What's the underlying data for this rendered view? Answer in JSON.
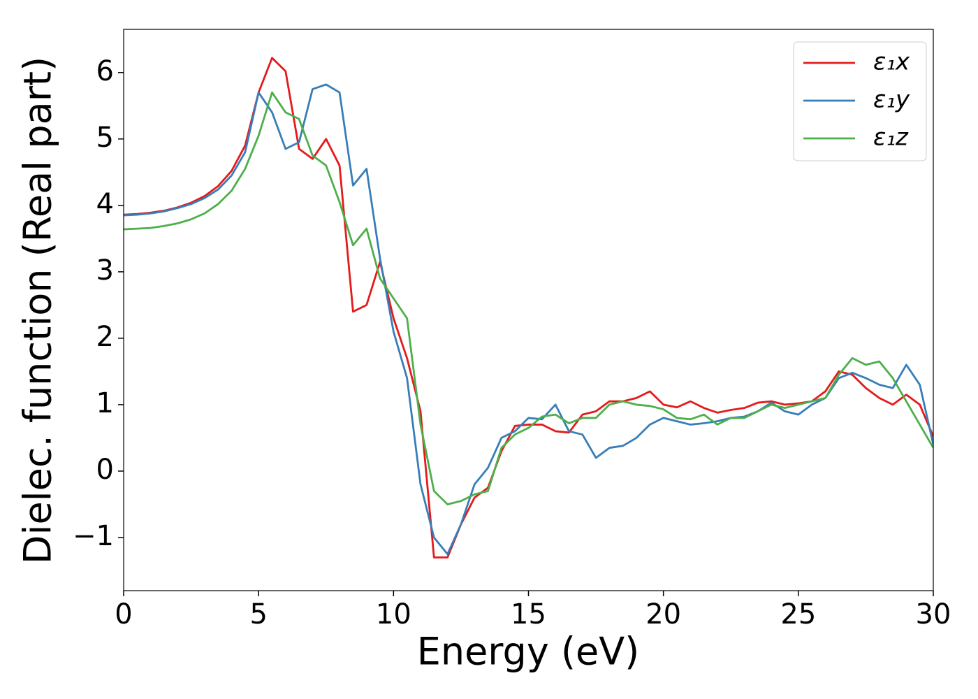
{
  "chart_data": {
    "type": "line",
    "x_label": "Energy (eV)",
    "y_label": "Dielec. function (Real part)",
    "xlim": [
      0,
      30
    ],
    "ylim": [
      -1.8,
      6.65
    ],
    "xticks": [
      0,
      5,
      10,
      15,
      20,
      25,
      30
    ],
    "yticks": [
      {
        "value": -1,
        "label": "−1"
      },
      0,
      1,
      2,
      3,
      4,
      5,
      6
    ],
    "legend_position": "upper right",
    "x": [
      0,
      0.5,
      1,
      1.5,
      2,
      2.5,
      3,
      3.5,
      4,
      4.5,
      5,
      5.5,
      6,
      6.5,
      7,
      7.5,
      8,
      8.5,
      9,
      9.5,
      10,
      10.5,
      11,
      11.5,
      12,
      12.5,
      13,
      13.5,
      14,
      14.5,
      15,
      15.5,
      16,
      16.5,
      17,
      17.5,
      18,
      18.5,
      19,
      19.5,
      20,
      20.5,
      21,
      21.5,
      22,
      22.5,
      23,
      23.5,
      24,
      24.5,
      25,
      25.5,
      26,
      26.5,
      27,
      27.5,
      28,
      28.5,
      29,
      29.5,
      30
    ],
    "series": [
      {
        "name": "ε₁x",
        "color": "#e41a1c",
        "values": [
          3.86,
          3.87,
          3.89,
          3.92,
          3.97,
          4.04,
          4.14,
          4.29,
          4.52,
          4.9,
          5.7,
          6.22,
          6.02,
          4.85,
          4.7,
          5.0,
          4.6,
          2.4,
          2.5,
          3.15,
          2.3,
          1.7,
          0.9,
          -1.3,
          -1.3,
          -0.8,
          -0.4,
          -0.25,
          0.3,
          0.68,
          0.7,
          0.7,
          0.6,
          0.58,
          0.85,
          0.9,
          1.05,
          1.05,
          1.1,
          1.2,
          1.0,
          0.96,
          1.05,
          0.95,
          0.88,
          0.92,
          0.95,
          1.03,
          1.05,
          1.0,
          1.02,
          1.05,
          1.2,
          1.5,
          1.45,
          1.25,
          1.1,
          1.0,
          1.15,
          1.0,
          0.52
        ]
      },
      {
        "name": "ε₁y",
        "color": "#377eb8",
        "values": [
          3.85,
          3.86,
          3.88,
          3.91,
          3.96,
          4.02,
          4.11,
          4.24,
          4.45,
          4.8,
          5.7,
          5.4,
          4.85,
          4.95,
          5.75,
          5.82,
          5.7,
          4.3,
          4.55,
          3.2,
          2.1,
          1.4,
          -0.2,
          -1.0,
          -1.25,
          -0.8,
          -0.2,
          0.05,
          0.5,
          0.6,
          0.8,
          0.78,
          1.0,
          0.6,
          0.55,
          0.2,
          0.35,
          0.38,
          0.5,
          0.7,
          0.8,
          0.75,
          0.7,
          0.72,
          0.75,
          0.8,
          0.82,
          0.9,
          1.03,
          0.9,
          0.85,
          1.0,
          1.1,
          1.4,
          1.48,
          1.4,
          1.3,
          1.25,
          1.6,
          1.3,
          0.4
        ]
      },
      {
        "name": "ε₁z",
        "color": "#4daf4a",
        "values": [
          3.64,
          3.65,
          3.66,
          3.69,
          3.73,
          3.79,
          3.88,
          4.02,
          4.22,
          4.55,
          5.05,
          5.7,
          5.4,
          5.3,
          4.75,
          4.6,
          4.05,
          3.4,
          3.65,
          2.9,
          2.6,
          2.3,
          0.7,
          -0.3,
          -0.5,
          -0.45,
          -0.35,
          -0.3,
          0.35,
          0.55,
          0.65,
          0.82,
          0.85,
          0.72,
          0.8,
          0.8,
          1.0,
          1.05,
          1.0,
          0.98,
          0.93,
          0.8,
          0.78,
          0.85,
          0.7,
          0.8,
          0.8,
          0.9,
          1.0,
          0.95,
          1.0,
          1.05,
          1.1,
          1.45,
          1.7,
          1.6,
          1.65,
          1.4,
          1.05,
          0.7,
          0.35
        ]
      }
    ]
  }
}
